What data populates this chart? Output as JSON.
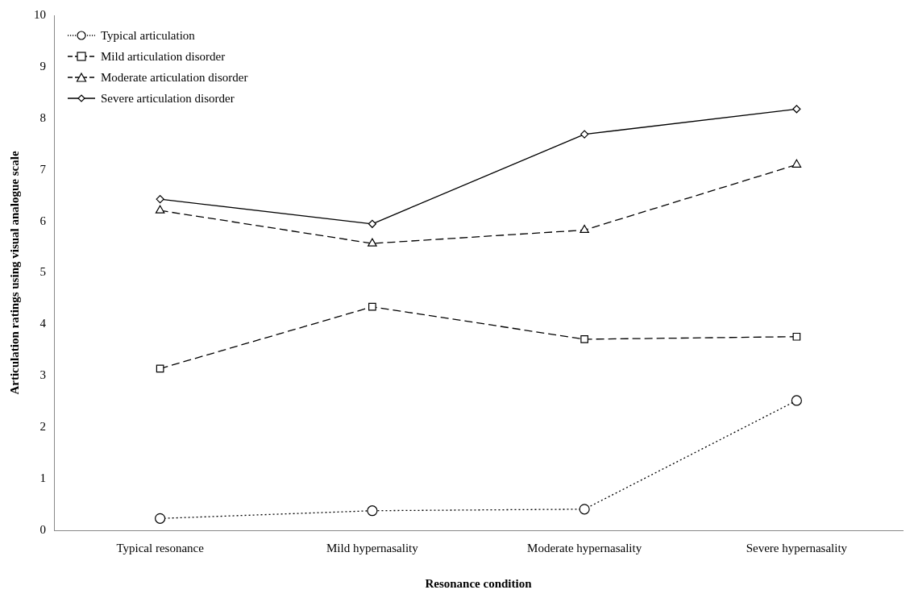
{
  "chart_data": {
    "type": "line",
    "xlabel": "Resonance condition",
    "ylabel": "Articulation ratings using visual analogue scale",
    "categories": [
      "Typical resonance",
      "Mild hypernasality",
      "Moderate hypernasality",
      "Severe hypernasality"
    ],
    "series": [
      {
        "name": "Typical articulation",
        "color": "#000000",
        "values": [
          0.23,
          0.38,
          0.41,
          2.52
        ],
        "marker": "circle",
        "line_style": "dotted"
      },
      {
        "name": "Mild articulation disorder",
        "color": "#000000",
        "values": [
          3.14,
          4.34,
          3.71,
          3.76
        ],
        "marker": "square",
        "line_style": "dashed"
      },
      {
        "name": "Moderate articulation disorder",
        "color": "#000000",
        "values": [
          6.21,
          5.57,
          5.83,
          7.1
        ],
        "marker": "triangle",
        "line_style": "dashed"
      },
      {
        "name": "Severe articulation disorder",
        "color": "#000000",
        "values": [
          6.43,
          5.95,
          7.69,
          8.18
        ],
        "marker": "diamond",
        "line_style": "solid"
      }
    ],
    "ylim": [
      0,
      10
    ],
    "yticks": [
      0,
      1,
      2,
      3,
      4,
      5,
      6,
      7,
      8,
      9,
      10
    ],
    "grid": false,
    "legend": "top left"
  }
}
